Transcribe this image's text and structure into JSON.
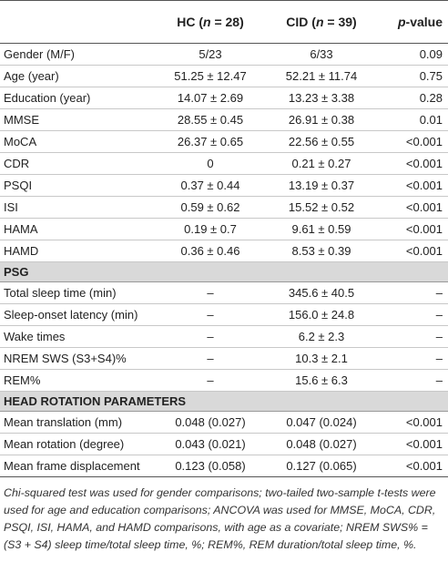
{
  "table": {
    "header": [
      {
        "parts": [
          "HC (",
          "n",
          " = 28)"
        ],
        "italic_part": 1
      },
      {
        "parts": [
          "CID (",
          "n",
          " = 39)"
        ],
        "italic_part": 1
      },
      {
        "parts": [
          "p",
          "-value"
        ],
        "italic_part": 0
      }
    ],
    "groups": [
      {
        "rows": [
          [
            "Gender (M/F)",
            "5/23",
            "6/33",
            "0.09"
          ],
          [
            "Age (year)",
            "51.25 ± 12.47",
            "52.21 ± 11.74",
            "0.75"
          ],
          [
            "Education (year)",
            "14.07 ± 2.69",
            "13.23 ± 3.38",
            "0.28"
          ],
          [
            "MMSE",
            "28.55 ± 0.45",
            "26.91 ± 0.38",
            "0.01"
          ],
          [
            "MoCA",
            "26.37 ± 0.65",
            "22.56 ± 0.55",
            "<0.001"
          ],
          [
            "CDR",
            "0",
            "0.21 ± 0.27",
            "<0.001"
          ],
          [
            "PSQI",
            "0.37 ± 0.44",
            "13.19 ± 0.37",
            "<0.001"
          ],
          [
            "ISI",
            "0.59 ± 0.62",
            "15.52 ± 0.52",
            "<0.001"
          ],
          [
            "HAMA",
            "0.19 ± 0.7",
            "9.61 ± 0.59",
            "<0.001"
          ],
          [
            "HAMD",
            "0.36 ± 0.46",
            "8.53 ± 0.39",
            "<0.001"
          ]
        ]
      },
      {
        "title": "PSG",
        "rows": [
          [
            "Total sleep time (min)",
            "–",
            "345.6 ± 40.5",
            "–"
          ],
          [
            "Sleep-onset latency (min)",
            "–",
            "156.0 ± 24.8",
            "–"
          ],
          [
            "Wake times",
            "–",
            "6.2 ± 2.3",
            "–"
          ],
          [
            "NREM SWS (S3+S4)%",
            "–",
            "10.3 ± 2.1",
            "–"
          ],
          [
            "REM%",
            "–",
            "15.6 ± 6.3",
            "–"
          ]
        ]
      },
      {
        "title": "HEAD ROTATION PARAMETERS",
        "rows": [
          [
            "Mean translation (mm)",
            "0.048 (0.027)",
            "0.047 (0.024)",
            "<0.001"
          ],
          [
            "Mean rotation (degree)",
            "0.043 (0.021)",
            "0.048 (0.027)",
            "<0.001"
          ],
          [
            "Mean frame displacement",
            "0.123 (0.058)",
            "0.127 (0.065)",
            "<0.001"
          ]
        ]
      }
    ],
    "footnote": "Chi-squared test was used for gender comparisons; two-tailed two-sample t-tests were used for age and education comparisons; ANCOVA was used for MMSE, MoCA, CDR, PSQI, ISI, HAMA, and HAMD comparisons, with age as a covariate; NREM SWS% = (S3 + S4) sleep time/total sleep time, %; REM%, REM duration/total sleep time, %."
  }
}
